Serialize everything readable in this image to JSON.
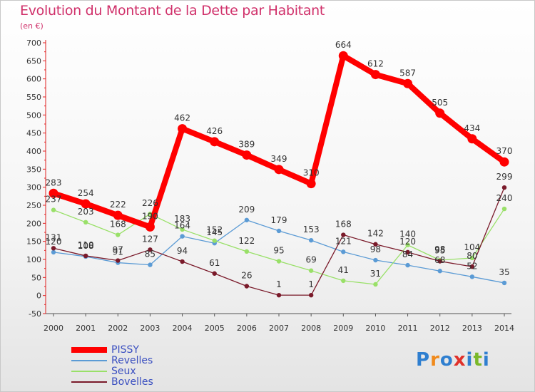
{
  "title": "Evolution du Montant de la Dette par Habitant",
  "subtitle": "(en €)",
  "logo": {
    "text": "Proxiti",
    "letter_colors": [
      "#2f7fd0",
      "#f08a1c",
      "#2f7fd0",
      "#e0312a",
      "#2f7fd0",
      "#7ab82a",
      "#2f7fd0"
    ]
  },
  "chart_data": {
    "type": "line",
    "title": "Evolution du Montant de la Dette par Habitant",
    "subtitle": "(en €)",
    "xlabel": "",
    "ylabel": "",
    "x": [
      "2000",
      "2001",
      "2002",
      "2003",
      "2004",
      "2005",
      "2006",
      "2007",
      "2008",
      "2009",
      "2010",
      "2011",
      "2012",
      "2013",
      "2014"
    ],
    "ylim": [
      -50,
      700
    ],
    "yticks": [
      -50,
      0,
      50,
      100,
      150,
      200,
      250,
      300,
      350,
      400,
      450,
      500,
      550,
      600,
      650,
      700
    ],
    "grid": false,
    "legend_position": "bottom-left",
    "series": [
      {
        "name": "PISSY",
        "color": "#ff0000",
        "values": [
          283,
          254,
          222,
          190,
          462,
          426,
          389,
          349,
          310,
          664,
          612,
          587,
          505,
          434,
          370
        ]
      },
      {
        "name": "Revelles",
        "color": "#5b9bd5",
        "values": [
          120,
          108,
          91,
          85,
          164,
          145,
          209,
          179,
          153,
          121,
          98,
          84,
          68,
          52,
          35
        ]
      },
      {
        "name": "Seux",
        "color": "#99e068",
        "values": [
          237,
          203,
          168,
          226,
          183,
          152,
          122,
          95,
          69,
          41,
          31,
          140,
          98,
          104,
          240
        ]
      },
      {
        "name": "Bovelles",
        "color": "#7a1a2a",
        "values": [
          131,
          110,
          97,
          127,
          94,
          61,
          26,
          1,
          1,
          168,
          142,
          120,
          95,
          80,
          299
        ]
      }
    ],
    "data_labels": [
      [
        "283",
        "254",
        "222",
        "190",
        "462",
        "426",
        "389",
        "349",
        "310",
        "664",
        "612",
        "587",
        "505",
        "434",
        "370"
      ],
      [
        "120",
        "108",
        "91",
        "85",
        "164",
        "145",
        "209",
        "179",
        "153",
        "121",
        "98",
        "84",
        "68",
        "52",
        "35"
      ],
      [
        "237",
        "203",
        "168",
        "226",
        "183",
        "152",
        "122",
        "95",
        "69",
        "41",
        "31",
        "140",
        "98",
        "104",
        "240"
      ],
      [
        "131",
        "110",
        "97",
        "127",
        "94",
        "61",
        "26",
        "1",
        "1",
        "168",
        "142",
        "120",
        "95",
        "80",
        "299"
      ]
    ]
  }
}
